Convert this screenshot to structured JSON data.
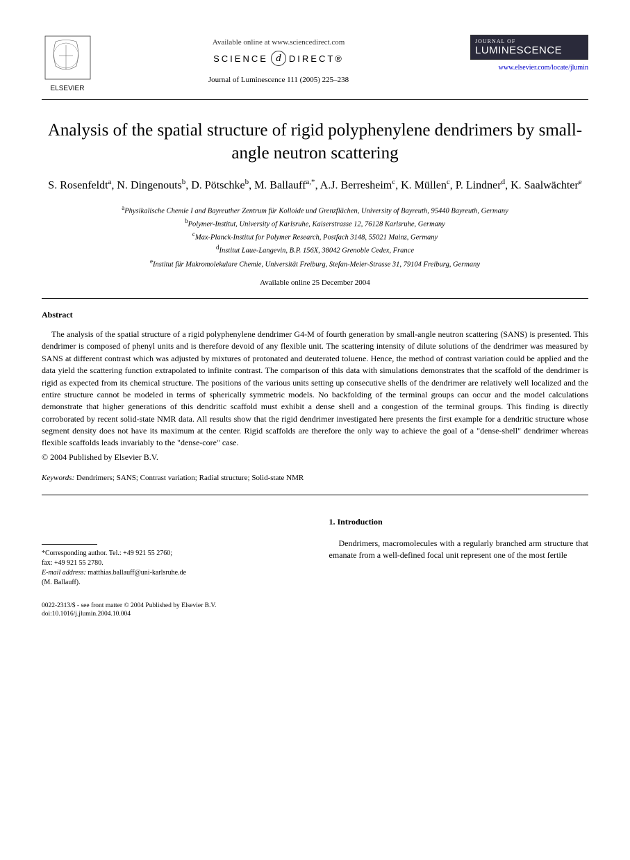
{
  "header": {
    "available_text": "Available online at www.sciencedirect.com",
    "science_direct_left": "SCIENCE",
    "science_direct_d": "d",
    "science_direct_right": "DIRECT®",
    "journal_ref": "Journal of Luminescence 111 (2005) 225–238",
    "publisher_name": "ELSEVIER",
    "journal_logo_small": "JOURNAL OF",
    "journal_logo_big": "LUMINESCENCE",
    "journal_link": "www.elsevier.com/locate/jlumin"
  },
  "title": "Analysis of the spatial structure of rigid polyphenylene dendrimers by small-angle neutron scattering",
  "authors_html": "S. Rosenfeldt<sup>a</sup>, N. Dingenouts<sup>b</sup>, D. Pötschke<sup>b</sup>, M. Ballauff<sup>a,*</sup>, A.J. Berresheim<sup>c</sup>, K. Müllen<sup>c</sup>, P. Lindner<sup>d</sup>, K. Saalwächter<sup>e</sup>",
  "affiliations": {
    "a": "Physikalische Chemie I and Bayreuther Zentrum für Kolloide und Grenzflächen, University of Bayreuth, 95440 Bayreuth, Germany",
    "b": "Polymer-Institut, University of Karlsruhe, Kaiserstrasse 12, 76128 Karlsruhe, Germany",
    "c": "Max-Planck-Institut for Polymer Research, Postfach 3148, 55021 Mainz, Germany",
    "d": "Institut Laue-Langevin, B.P. 156X, 38042 Grenoble Cedex, France",
    "e": "Institut für Makromolekulare Chemie, Universität Freiburg, Stefan-Meier-Strasse 31, 79104 Freiburg, Germany"
  },
  "online_date": "Available online 25 December 2004",
  "abstract": {
    "heading": "Abstract",
    "text": "The analysis of the spatial structure of a rigid polyphenylene dendrimer G4-M of fourth generation by small-angle neutron scattering (SANS) is presented. This dendrimer is composed of phenyl units and is therefore devoid of any flexible unit. The scattering intensity of dilute solutions of the dendrimer was measured by SANS at different contrast which was adjusted by mixtures of protonated and deuterated toluene. Hence, the method of contrast variation could be applied and the data yield the scattering function extrapolated to infinite contrast. The comparison of this data with simulations demonstrates that the scaffold of the dendrimer is rigid as expected from its chemical structure. The positions of the various units setting up consecutive shells of the dendrimer are relatively well localized and the entire structure cannot be modeled in terms of spherically symmetric models. No backfolding of the terminal groups can occur and the model calculations demonstrate that higher generations of this dendritic scaffold must exhibit a dense shell and a congestion of the terminal groups. This finding is directly corroborated by recent solid-state NMR data. All results show that the rigid dendrimer investigated here presents the first example for a dendritic structure whose segment density does not have its maximum at the center. Rigid scaffolds are therefore the only way to achieve the goal of a \"dense-shell\" dendrimer whereas flexible scaffolds leads invariably to the \"dense-core\" case.",
    "copyright": "© 2004 Published by Elsevier B.V."
  },
  "keywords": {
    "label": "Keywords:",
    "text": " Dendrimers; SANS; Contrast variation; Radial structure; Solid-state NMR"
  },
  "corresponding": {
    "line1": "*Corresponding author. Tel.: +49 921 55 2760;",
    "line2": "fax: +49 921 55 2780.",
    "email_label": "E-mail address:",
    "email": " matthias.ballauff@uni-karlsruhe.de",
    "name": "(M. Ballauff)."
  },
  "introduction": {
    "heading": "1. Introduction",
    "text": "Dendrimers, macromolecules with a regularly branched arm structure that emanate from a well-defined focal unit represent one of the most fertile"
  },
  "footer": {
    "line1": "0022-2313/$ - see front matter © 2004 Published by Elsevier B.V.",
    "line2": "doi:10.1016/j.jlumin.2004.10.004"
  },
  "colors": {
    "text": "#000000",
    "link": "#0000cc",
    "background": "#ffffff",
    "logo_bg": "#2a2a3a"
  },
  "typography": {
    "title_fontsize": 25,
    "authors_fontsize": 16,
    "body_fontsize": 12,
    "affil_fontsize": 10.5,
    "footer_fontsize": 9.5,
    "font_family": "Georgia, Times New Roman, serif"
  }
}
